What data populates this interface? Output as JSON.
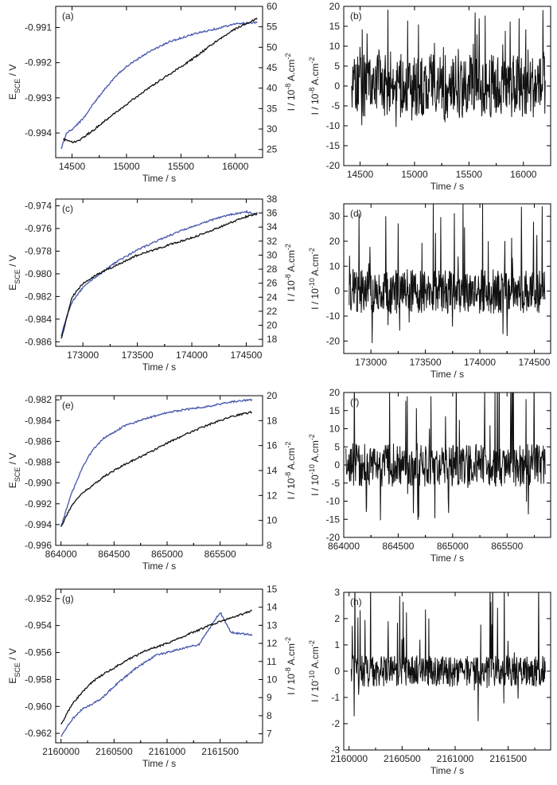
{
  "figure": {
    "description_free": true
  },
  "chart_data": [
    {
      "panel": "(a)",
      "type": "line",
      "kind": "dual",
      "xlabel": "Time / s",
      "ylabel_left": "E_SCE / V",
      "ylabel_right": "I / 10^-8 A.cm^-2",
      "xlim": [
        14350,
        16250
      ],
      "ylim_left": [
        -0.9947,
        -0.9904
      ],
      "ylim_right": [
        23,
        60
      ],
      "xticks": [
        "14500",
        "15000",
        "15500",
        "16000"
      ],
      "yticks_left": [
        "-0.994",
        "-0.993",
        "-0.992",
        "-0.991"
      ],
      "yticks_right": [
        "25",
        "30",
        "35",
        "40",
        "45",
        "50",
        "55",
        "60"
      ],
      "series": [
        {
          "name": "E_SCE",
          "axis": "left",
          "color": "#4455aa",
          "x": [
            14400,
            14450,
            14500,
            14600,
            14700,
            14800,
            14900,
            15000,
            15200,
            15400,
            15600,
            15800,
            16000,
            16200
          ],
          "y": [
            -0.99445,
            -0.994,
            -0.9939,
            -0.9936,
            -0.99315,
            -0.99275,
            -0.9924,
            -0.9921,
            -0.9917,
            -0.9914,
            -0.9912,
            -0.99105,
            -0.9909,
            -0.99085
          ]
        },
        {
          "name": "I",
          "axis": "right",
          "color": "#111111",
          "x": [
            14420,
            14450,
            14500,
            14550,
            14600,
            14700,
            14800,
            15000,
            15200,
            15400,
            15600,
            15800,
            16000,
            16200
          ],
          "y": [
            27.5,
            27.3,
            26.8,
            27.0,
            27.9,
            29.8,
            32.0,
            36.0,
            40.0,
            43.5,
            47.0,
            51.0,
            54.5,
            57.0
          ]
        }
      ]
    },
    {
      "panel": "(b)",
      "type": "line",
      "kind": "noise",
      "xlabel": "Time / s",
      "ylabel_left": "I / 10^-8 A.cm^-2",
      "xlim": [
        14350,
        16250
      ],
      "ylim_left": [
        -20,
        20
      ],
      "xticks": [
        "14500",
        "15000",
        "15500",
        "16000"
      ],
      "yticks_left": [
        "-20",
        "-15",
        "-10",
        "-5",
        "0",
        "5",
        "10",
        "15",
        "20"
      ],
      "series": [
        {
          "name": "I noise",
          "color": "#111111",
          "x_start": 14420,
          "x_end": 16200,
          "amplitude": 8,
          "spike": 15
        }
      ]
    },
    {
      "panel": "(c)",
      "type": "line",
      "kind": "dual",
      "xlabel": "Time / s",
      "ylabel_left": "E_SCE / V",
      "ylabel_right": "I / 10^-8 A.cm^-2",
      "xlim": [
        172750,
        174650
      ],
      "ylim_left": [
        -0.9864,
        -0.9734
      ],
      "ylim_right": [
        17,
        38
      ],
      "xticks": [
        "173000",
        "173500",
        "174000",
        "174500"
      ],
      "yticks_left": [
        "-0.986",
        "-0.984",
        "-0.982",
        "-0.980",
        "-0.978",
        "-0.976",
        "-0.974"
      ],
      "yticks_right": [
        "18",
        "20",
        "22",
        "24",
        "26",
        "28",
        "30",
        "32",
        "34",
        "36",
        "38"
      ],
      "series": [
        {
          "name": "E_SCE",
          "axis": "left",
          "color": "#4455aa",
          "x": [
            172800,
            172850,
            172900,
            173000,
            173100,
            173300,
            173500,
            173700,
            173900,
            174100,
            174300,
            174500,
            174600
          ],
          "y": [
            -0.9855,
            -0.9838,
            -0.9825,
            -0.9812,
            -0.9804,
            -0.979,
            -0.9779,
            -0.977,
            -0.9762,
            -0.9755,
            -0.9749,
            -0.9745,
            -0.9748
          ]
        },
        {
          "name": "I",
          "axis": "right",
          "color": "#111111",
          "x": [
            172800,
            172850,
            172900,
            173000,
            173100,
            173300,
            173500,
            173700,
            173900,
            174100,
            174300,
            174500,
            174600
          ],
          "y": [
            18.0,
            21.0,
            24.0,
            26.0,
            27.0,
            28.5,
            30.0,
            31.0,
            32.0,
            33.0,
            34.3,
            35.5,
            36.0
          ]
        }
      ]
    },
    {
      "panel": "(d)",
      "type": "line",
      "kind": "noise",
      "xlabel": "Time / s",
      "ylabel_left": "I / 10^-10 A.cm^-2",
      "xlim": [
        172750,
        174650
      ],
      "ylim_left": [
        -25,
        35
      ],
      "xticks": [
        "173000",
        "173500",
        "174000",
        "174500"
      ],
      "yticks_left": [
        "-20",
        "-10",
        "0",
        "10",
        "20",
        "30"
      ],
      "series": [
        {
          "name": "I noise",
          "color": "#111111",
          "x_start": 172800,
          "x_end": 174600,
          "amplitude": 9,
          "spike": 30
        }
      ]
    },
    {
      "panel": "(e)",
      "type": "line",
      "kind": "dual",
      "xlabel": "Time / s",
      "ylabel_left": "E_SCE / V",
      "ylabel_right": "I / 10^-8 A.cm^-2",
      "xlim": [
        863950,
        865900
      ],
      "ylim_left": [
        -0.996,
        -0.9816
      ],
      "ylim_right": [
        8,
        20
      ],
      "xticks": [
        "864000",
        "864500",
        "865000",
        "865500"
      ],
      "yticks_left": [
        "-0.996",
        "-0.994",
        "-0.992",
        "-0.990",
        "-0.988",
        "-0.986",
        "-0.984",
        "-0.982"
      ],
      "yticks_right": [
        "8",
        "10",
        "12",
        "14",
        "16",
        "18",
        "20"
      ],
      "series": [
        {
          "name": "E_SCE",
          "axis": "left",
          "color": "#4455aa",
          "x": [
            864000,
            864100,
            864200,
            864300,
            864400,
            864600,
            864800,
            865000,
            865200,
            865400,
            865600,
            865800
          ],
          "y": [
            -0.9942,
            -0.991,
            -0.9885,
            -0.9868,
            -0.9857,
            -0.9845,
            -0.9838,
            -0.9832,
            -0.9829,
            -0.9826,
            -0.9822,
            -0.982
          ]
        },
        {
          "name": "I",
          "axis": "right",
          "color": "#111111",
          "x": [
            864000,
            864100,
            864200,
            864300,
            864400,
            864600,
            864800,
            865000,
            865200,
            865400,
            865600,
            865800
          ],
          "y": [
            9.5,
            11.2,
            12.2,
            12.8,
            13.5,
            14.5,
            15.3,
            16.2,
            17.0,
            17.7,
            18.3,
            18.7
          ]
        }
      ]
    },
    {
      "panel": "(f)",
      "type": "line",
      "kind": "noise",
      "xlabel": "Time / s",
      "ylabel_left": "I / 10^-10 A.cm^-2",
      "xlim": [
        864000,
        865900
      ],
      "ylim_left": [
        -20,
        20
      ],
      "xticks": [
        "864000",
        "864500",
        "865000",
        "865500"
      ],
      "yticks_left": [
        "-20",
        "-15",
        "-10",
        "-5",
        "0",
        "5",
        "10",
        "15",
        "20"
      ],
      "series": [
        {
          "name": "I noise",
          "color": "#111111",
          "x_start": 864020,
          "x_end": 865850,
          "amplitude": 6,
          "spike": 22
        }
      ]
    },
    {
      "panel": "(g)",
      "type": "line",
      "kind": "dual",
      "xlabel": "Time / s",
      "ylabel_left": "E_SCE / V",
      "ylabel_right": "I / 10^-8 A.cm^-2",
      "xlim": [
        2159950,
        2161900
      ],
      "ylim_left": [
        -0.9627,
        -0.9513
      ],
      "ylim_right": [
        6.5,
        15
      ],
      "xticks": [
        "2160000",
        "2160500",
        "2161000",
        "2161500"
      ],
      "yticks_left": [
        "-0.962",
        "-0.960",
        "-0.958",
        "-0.956",
        "-0.954",
        "-0.952"
      ],
      "yticks_right": [
        "7",
        "8",
        "9",
        "10",
        "11",
        "12",
        "13",
        "14",
        "15"
      ],
      "series": [
        {
          "name": "E_SCE",
          "axis": "left",
          "color": "#4455aa",
          "x": [
            2160000,
            2160100,
            2160200,
            2160300,
            2160400,
            2160500,
            2160700,
            2160900,
            2161100,
            2161300,
            2161500,
            2161600,
            2161800
          ],
          "y": [
            -0.9622,
            -0.961,
            -0.9602,
            -0.9598,
            -0.9593,
            -0.9585,
            -0.9572,
            -0.9562,
            -0.9558,
            -0.9554,
            -0.953,
            -0.9545,
            -0.9547
          ]
        },
        {
          "name": "I",
          "axis": "right",
          "color": "#111111",
          "x": [
            2160000,
            2160100,
            2160200,
            2160300,
            2160400,
            2160600,
            2160800,
            2161000,
            2161200,
            2161400,
            2161600,
            2161800
          ],
          "y": [
            7.5,
            8.6,
            9.3,
            9.9,
            10.3,
            11.0,
            11.6,
            12.0,
            12.5,
            13.0,
            13.4,
            13.8
          ]
        }
      ]
    },
    {
      "panel": "(h)",
      "type": "line",
      "kind": "noise",
      "xlabel": "Time / s",
      "ylabel_left": "I / 10^-10 A.cm^-2",
      "xlim": [
        2159950,
        2161900
      ],
      "ylim_left": [
        -3,
        3
      ],
      "xticks": [
        "2160000",
        "2160500",
        "2161000",
        "2161500"
      ],
      "yticks_left": [
        "-3",
        "-2",
        "-1",
        "0",
        "1",
        "2",
        "3"
      ],
      "series": [
        {
          "name": "I noise",
          "color": "#111111",
          "x_start": 2160020,
          "x_end": 2161850,
          "amplitude": 0.6,
          "spike": 3
        }
      ]
    }
  ]
}
